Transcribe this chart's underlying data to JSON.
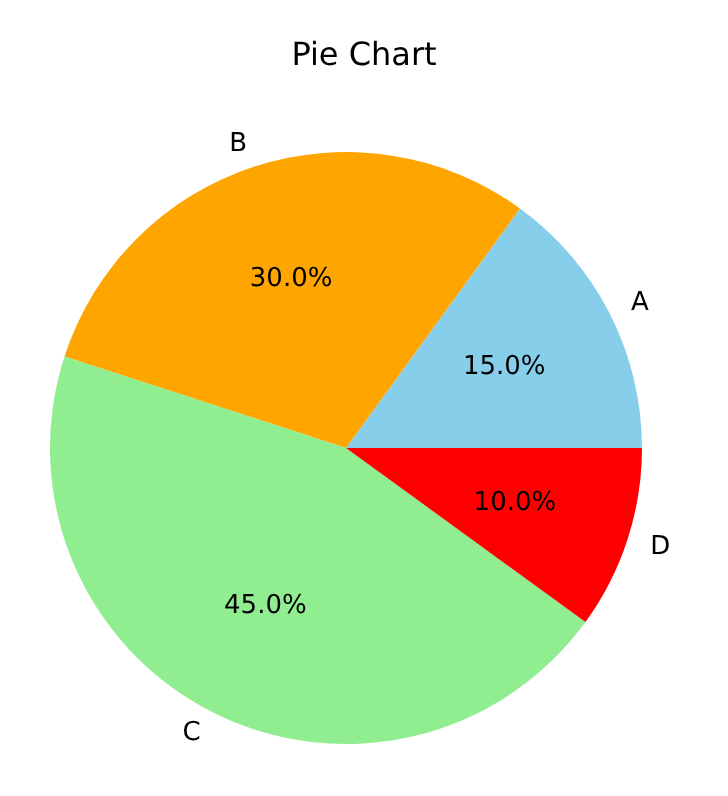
{
  "chart_data": {
    "type": "pie",
    "title": "Pie Chart",
    "categories": [
      "A",
      "B",
      "C",
      "D"
    ],
    "values": [
      15,
      30,
      45,
      10
    ],
    "colors": [
      "#87ceeb",
      "#ffa500",
      "#90ee90",
      "#ff0000"
    ],
    "value_labels": [
      "15.0%",
      "30.0%",
      "45.0%",
      "10.0%"
    ]
  }
}
